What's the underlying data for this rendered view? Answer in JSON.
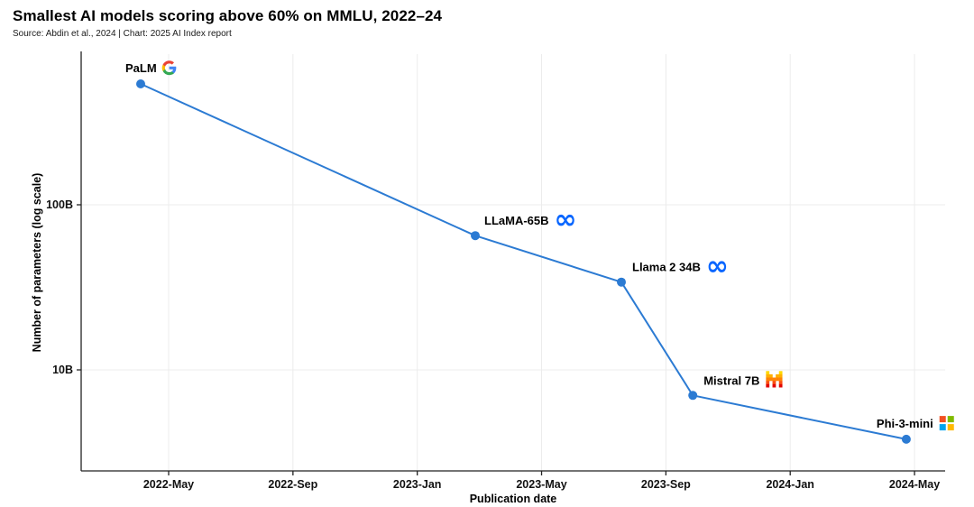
{
  "header": {
    "title": "Smallest AI models scoring above 60% on MMLU, 2022–24",
    "source": "Source: Abdin et al., 2024 | Chart: 2025 AI Index report"
  },
  "chart_data": {
    "type": "line",
    "title": "Smallest AI models scoring above 60% on MMLU, 2022–24",
    "source": "Source: Abdin et al., 2024 | Chart: 2025 AI Index report",
    "xlabel": "Publication date",
    "ylabel": "Number of parameters (log scale)",
    "y_scale": "log",
    "y_unit": "billions of parameters",
    "grid": true,
    "legend": "none",
    "x_ticks": [
      {
        "label": "2022-May",
        "date": "2022-05"
      },
      {
        "label": "2022-Sep",
        "date": "2022-09"
      },
      {
        "label": "2023-Jan",
        "date": "2023-01"
      },
      {
        "label": "2023-May",
        "date": "2023-05"
      },
      {
        "label": "2023-Sep",
        "date": "2023-09"
      },
      {
        "label": "2024-Jan",
        "date": "2024-01"
      },
      {
        "label": "2024-May",
        "date": "2024-05"
      }
    ],
    "y_ticks": [
      {
        "label": "10B",
        "value": 10
      },
      {
        "label": "100B",
        "value": 100
      }
    ],
    "series": [
      {
        "name": "Smallest model scoring above 60% on MMLU",
        "color": "#2C7BD3",
        "points": [
          {
            "model": "PaLM",
            "org": "Google",
            "org_icon": "google-logo",
            "date": "2022-04-04",
            "params_b": 540
          },
          {
            "model": "LLaMA-65B",
            "org": "Meta",
            "org_icon": "meta-logo",
            "date": "2023-02-27",
            "params_b": 65
          },
          {
            "model": "Llama 2 34B",
            "org": "Meta",
            "org_icon": "meta-logo",
            "date": "2023-07-18",
            "params_b": 34
          },
          {
            "model": "Mistral 7B",
            "org": "Mistral AI",
            "org_icon": "mistral-logo",
            "date": "2023-09-27",
            "params_b": 7
          },
          {
            "model": "Phi-3-mini",
            "org": "Microsoft",
            "org_icon": "microsoft-logo",
            "date": "2024-04-23",
            "params_b": 3.8
          }
        ]
      }
    ],
    "colors": {
      "line": "#2C7BD3",
      "point": "#2C7BD3",
      "grid": "#ECECEC",
      "axis": "#222222",
      "meta_blue": "#0866FF",
      "google_g": [
        "#4285F4",
        "#34A853",
        "#FBBC05",
        "#EA4335"
      ],
      "microsoft": [
        "#F25022",
        "#7FBA00",
        "#00A4EF",
        "#FFB900"
      ],
      "mistral": [
        "#FFD800",
        "#FFAF00",
        "#FF8205",
        "#FA500F",
        "#E10500"
      ]
    }
  }
}
